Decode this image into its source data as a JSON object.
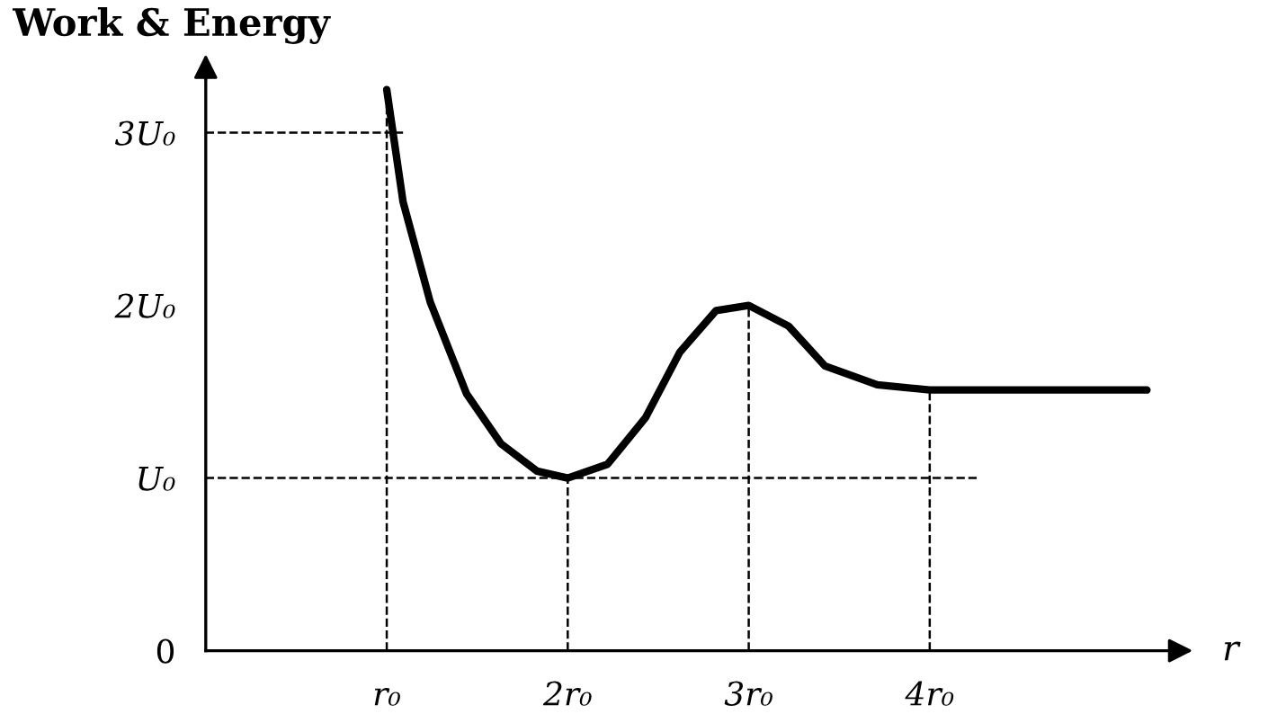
{
  "chart_data": {
    "type": "line",
    "title": "Work & Energy",
    "xlabel": "r",
    "xlim": [
      0,
      5.4
    ],
    "ylim": [
      0,
      3.35
    ],
    "xticks": [
      {
        "value": 1,
        "label": "r₀"
      },
      {
        "value": 2,
        "label": "2r₀"
      },
      {
        "value": 3,
        "label": "3r₀"
      },
      {
        "value": 4,
        "label": "4r₀"
      }
    ],
    "yticks": [
      0,
      {
        "value": 1,
        "label": "U₀"
      },
      {
        "value": 2,
        "label": "2U₀"
      },
      {
        "value": 3,
        "label": "3U₀"
      }
    ],
    "series": [
      {
        "color": "#000000",
        "x": [
          1.0,
          1.09,
          1.24,
          1.44,
          1.63,
          1.83,
          2.0,
          2.22,
          2.43,
          2.62,
          2.82,
          3.0,
          3.22,
          3.42,
          3.71,
          4.0,
          5.2
        ],
        "values": [
          3.25,
          2.6,
          2.02,
          1.49,
          1.2,
          1.04,
          1.0,
          1.08,
          1.35,
          1.73,
          1.97,
          2.0,
          1.88,
          1.65,
          1.54,
          1.51,
          1.51
        ]
      }
    ],
    "ref_lines": [
      {
        "axis": "y",
        "value": 3,
        "line_style": "dashed"
      },
      {
        "axis": "y",
        "value": 1,
        "line_style": "dashed"
      },
      {
        "axis": "x",
        "value": 1,
        "line_style": "dashed"
      },
      {
        "axis": "x",
        "value": 2,
        "line_style": "dashed"
      },
      {
        "axis": "x",
        "value": 3,
        "line_style": "dashed"
      },
      {
        "axis": "x",
        "value": 4,
        "line_style": "dashed"
      }
    ],
    "grid": false,
    "marker": "none",
    "line_style": "solid"
  }
}
